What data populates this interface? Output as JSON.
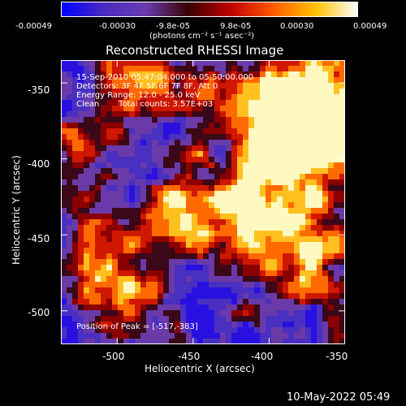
{
  "colorbar": {
    "tick_labels": [
      "-0.00049",
      "-0.00030",
      "-9.8e-05",
      "9.8e-05",
      "0.00030",
      "0.00049"
    ],
    "units": "(photons cm⁻² s⁻¹ asec⁻²)",
    "colors": [
      "#0000ff",
      "#4a2bc0",
      "#6a3bb0",
      "#3a0000",
      "#c00000",
      "#ff5a00",
      "#ffc000",
      "#ffffff"
    ]
  },
  "plot": {
    "title": "Reconstructed RHESSI Image",
    "xlabel": "Heliocentric X (arcsec)",
    "ylabel": "Heliocentric Y (arcsec)",
    "x_ticks": [
      "-500",
      "-450",
      "-400",
      "-350"
    ],
    "y_ticks": [
      "-350",
      "-400",
      "-450",
      "-500"
    ],
    "xlim": [
      -537,
      -350
    ],
    "ylim": [
      -522,
      -335
    ]
  },
  "info": {
    "time_range": "15-Sep-2010 05:47:04.000 to 05:50:00.000",
    "detectors": "Detectors: 3F 4F 5F 6F 7F 8F, Att 0",
    "energy": "Energy Range: 12.0 - 25.0 keV",
    "method": "Clean",
    "counts": "Total counts: 3.57E+03",
    "peak": "Position of Peak = [-517,-383]"
  },
  "timestamp": "10-May-2022 05:49"
}
